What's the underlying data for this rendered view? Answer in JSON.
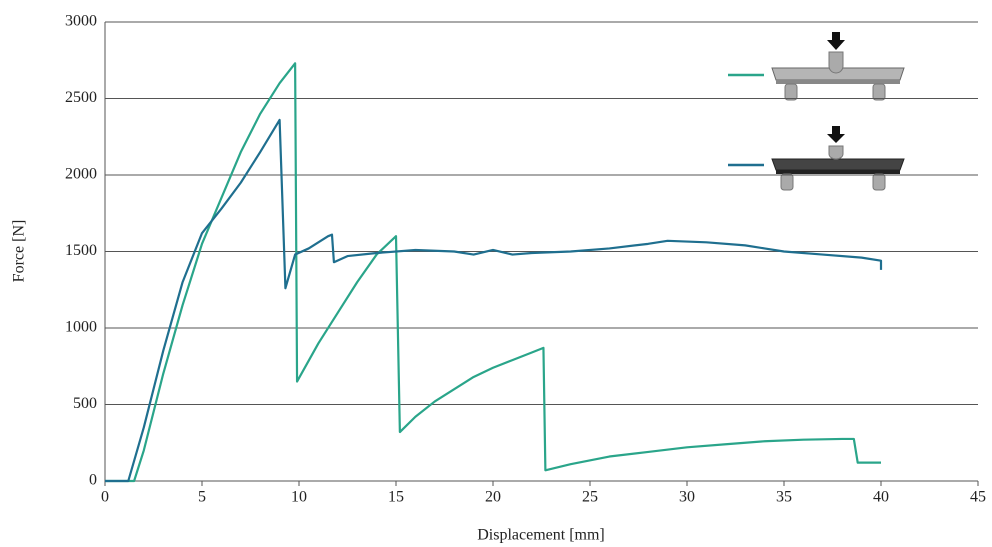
{
  "chart_data": {
    "type": "line",
    "x_label": "Displacement [mm]",
    "y_label": "Force [N]",
    "xlim": [
      0,
      45
    ],
    "xticks": [
      0,
      5,
      10,
      15,
      20,
      25,
      30,
      35,
      40,
      45
    ],
    "ylim": [
      0,
      3000
    ],
    "yticks": [
      0,
      500,
      1000,
      1500,
      2000,
      2500,
      3000
    ],
    "grid": true,
    "series": [
      {
        "color": "#2aa58a",
        "x": [
          0,
          1.5,
          2,
          3,
          4,
          5,
          6,
          7,
          8,
          9,
          9.8,
          9.9,
          11,
          12,
          13,
          14,
          15,
          15.2,
          16,
          17,
          18,
          19,
          20,
          21,
          22,
          22.6,
          22.7,
          24,
          26,
          28,
          30,
          32,
          34,
          36,
          38,
          38.6,
          38.8,
          40
        ],
        "values": [
          0,
          0,
          200,
          700,
          1150,
          1550,
          1850,
          2150,
          2400,
          2600,
          2730,
          650,
          900,
          1100,
          1300,
          1480,
          1600,
          320,
          420,
          520,
          600,
          680,
          740,
          790,
          840,
          870,
          70,
          110,
          160,
          190,
          220,
          240,
          260,
          270,
          275,
          275,
          120,
          120
        ]
      },
      {
        "color": "#1f6f8f",
        "x": [
          0,
          1.2,
          2,
          3,
          4,
          5,
          6,
          7,
          8,
          9,
          9.3,
          9.8,
          10.5,
          11.5,
          11.7,
          11.8,
          12.5,
          14,
          16,
          18,
          19,
          20,
          21,
          22,
          24,
          26,
          28,
          29,
          31,
          33,
          34,
          35,
          37,
          39,
          40,
          40
        ],
        "values": [
          0,
          0,
          350,
          850,
          1300,
          1620,
          1780,
          1950,
          2150,
          2360,
          1260,
          1480,
          1520,
          1600,
          1610,
          1430,
          1470,
          1490,
          1510,
          1500,
          1480,
          1510,
          1480,
          1490,
          1500,
          1520,
          1550,
          1570,
          1560,
          1540,
          1520,
          1500,
          1480,
          1460,
          1440,
          1380
        ]
      }
    ]
  }
}
